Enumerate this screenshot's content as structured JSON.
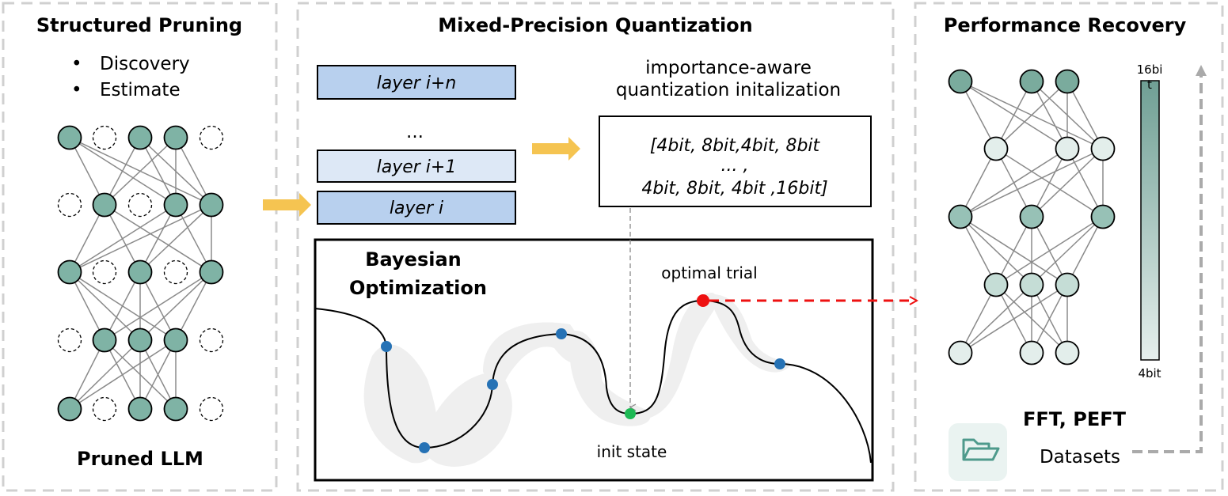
{
  "panels": {
    "pruning": {
      "title": "Structured Pruning",
      "bullets": [
        "Discovery",
        "Estimate"
      ],
      "caption": "Pruned LLM",
      "network": [
        [
          1,
          0,
          1,
          1,
          0
        ],
        [
          0,
          1,
          0,
          1,
          1
        ],
        [
          1,
          0,
          1,
          0,
          1
        ],
        [
          0,
          1,
          1,
          1,
          0
        ],
        [
          1,
          0,
          1,
          1,
          0
        ]
      ]
    },
    "quantization": {
      "title": "Mixed-Precision Quantization",
      "layers": [
        "layer i+n",
        "...",
        "layer i+1",
        "layer i"
      ],
      "init_heading": [
        "importance-aware",
        "quantization initalization"
      ],
      "bit_config": [
        "[4bit, 8bit,4bit, 8bit",
        "... ,",
        "4bit, 8bit, 4bit ,16bit]"
      ],
      "bo_title": [
        "Bayesian",
        "Optimization"
      ],
      "optimal_label": "optimal trial",
      "init_label": "init state"
    },
    "recovery": {
      "title": "Performance Recovery",
      "bar_top": "16bi",
      "bar_top_extra": "t",
      "bar_bottom": "4bit",
      "methods": "FFT, PEFT",
      "datasets": "Datasets",
      "icon": "folder-icon"
    }
  },
  "colors": {
    "node_pruned": "#7fb3a5",
    "layer_dark": "#b8d0ee",
    "layer_light": "#dde8f6",
    "arrow_yellow": "#f5c451",
    "sample_blue": "#2672b5",
    "init_green": "#1db954",
    "optimal_red": "#ee1111",
    "bar_high": "#6f9f94",
    "bar_low": "#e6efed"
  }
}
